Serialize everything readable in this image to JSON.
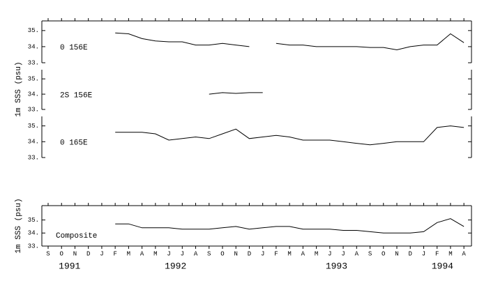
{
  "chart_data": [
    {
      "type": "line",
      "title": "0 156E",
      "ylabel": "1m SSS (psu)",
      "color": "#000000",
      "categories": [
        "S",
        "O",
        "N",
        "D",
        "J",
        "F",
        "M",
        "A",
        "M",
        "J",
        "J",
        "A",
        "S",
        "O",
        "N",
        "D",
        "J",
        "F",
        "M",
        "A",
        "M",
        "J",
        "J",
        "A",
        "S",
        "O",
        "N",
        "D",
        "J",
        "F",
        "M",
        "A"
      ],
      "values": [
        null,
        null,
        null,
        null,
        null,
        34.85,
        34.8,
        34.5,
        34.35,
        34.3,
        34.3,
        34.1,
        34.1,
        34.2,
        34.1,
        34.0,
        null,
        34.2,
        34.1,
        34.1,
        34.0,
        34.0,
        34.0,
        34.0,
        33.95,
        33.95,
        33.8,
        34.0,
        34.1,
        34.1,
        34.8,
        34.25
      ],
      "ylim": [
        33,
        35.6
      ],
      "yticks": [
        {
          "value": 33,
          "label": "33."
        },
        {
          "value": 34,
          "label": "34."
        },
        {
          "value": 35,
          "label": "35."
        }
      ]
    },
    {
      "type": "line",
      "title": "2S 156E",
      "color": "#000000",
      "categories": [
        "S",
        "O",
        "N",
        "D",
        "J",
        "F",
        "M",
        "A",
        "M",
        "J",
        "J",
        "A",
        "S",
        "O",
        "N",
        "D",
        "J",
        "F",
        "M",
        "A",
        "M",
        "J",
        "J",
        "A",
        "S",
        "O",
        "N",
        "D",
        "J",
        "F",
        "M",
        "A"
      ],
      "values": [
        null,
        null,
        null,
        null,
        null,
        null,
        null,
        null,
        null,
        null,
        null,
        null,
        34.0,
        34.1,
        34.05,
        34.1,
        34.1,
        null,
        null,
        null,
        null,
        null,
        null,
        null,
        null,
        null,
        null,
        null,
        null,
        null,
        null,
        null
      ],
      "ylim": [
        33,
        35.6
      ],
      "yticks": [
        {
          "value": 33,
          "label": "33."
        },
        {
          "value": 34,
          "label": "34."
        },
        {
          "value": 35,
          "label": "35."
        }
      ]
    },
    {
      "type": "line",
      "title": "0 165E",
      "color": "#000000",
      "categories": [
        "S",
        "O",
        "N",
        "D",
        "J",
        "F",
        "M",
        "A",
        "M",
        "J",
        "J",
        "A",
        "S",
        "O",
        "N",
        "D",
        "J",
        "F",
        "M",
        "A",
        "M",
        "J",
        "J",
        "A",
        "S",
        "O",
        "N",
        "D",
        "J",
        "F",
        "M",
        "A"
      ],
      "values": [
        null,
        null,
        null,
        null,
        null,
        34.6,
        34.6,
        34.6,
        34.5,
        34.1,
        34.2,
        34.3,
        34.2,
        34.5,
        34.8,
        34.2,
        34.3,
        34.4,
        34.3,
        34.1,
        34.1,
        34.1,
        34.0,
        33.9,
        33.8,
        33.9,
        34.0,
        34.0,
        34.0,
        34.9,
        35.0,
        34.9
      ],
      "ylim": [
        33,
        35.6
      ],
      "yticks": [
        {
          "value": 33,
          "label": "33."
        },
        {
          "value": 34,
          "label": "34."
        },
        {
          "value": 35,
          "label": "35."
        }
      ]
    },
    {
      "type": "line",
      "title": "Composite",
      "ylabel": "1m SSS (psu)",
      "color": "#000000",
      "categories": [
        "S",
        "O",
        "N",
        "D",
        "J",
        "F",
        "M",
        "A",
        "M",
        "J",
        "J",
        "A",
        "S",
        "O",
        "N",
        "D",
        "J",
        "F",
        "M",
        "A",
        "M",
        "J",
        "J",
        "A",
        "S",
        "O",
        "N",
        "D",
        "J",
        "F",
        "M",
        "A"
      ],
      "values": [
        null,
        null,
        null,
        null,
        null,
        34.7,
        34.7,
        34.4,
        34.4,
        34.4,
        34.3,
        34.3,
        34.3,
        34.4,
        34.5,
        34.3,
        34.4,
        34.5,
        34.5,
        34.3,
        34.3,
        34.3,
        34.2,
        34.2,
        34.1,
        34.0,
        34.0,
        34.0,
        34.1,
        34.8,
        35.1,
        34.5
      ],
      "ylim": [
        33,
        36.1
      ],
      "yticks": [
        {
          "value": 33,
          "label": "33."
        },
        {
          "value": 34,
          "label": "34."
        },
        {
          "value": 35,
          "label": "35."
        }
      ],
      "x_group_labels": [
        "1991",
        "1992",
        "1993",
        "1994"
      ]
    }
  ]
}
